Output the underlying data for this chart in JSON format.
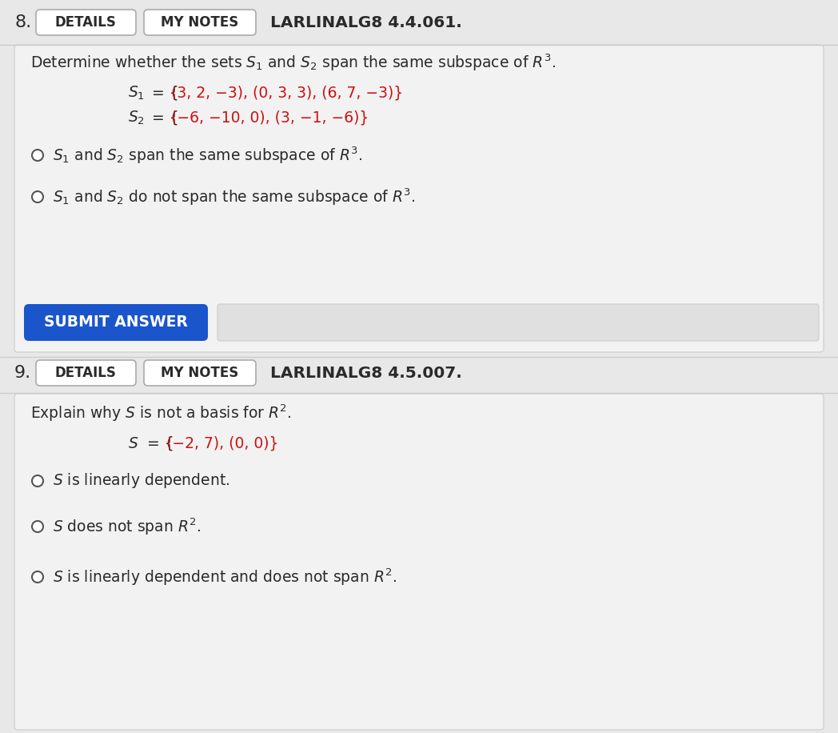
{
  "bg_color": "#e8e8e8",
  "panel_color": "#f0f0f0",
  "content_bg": "#f2f2f2",
  "white": "#ffffff",
  "border_color": "#bbbbbb",
  "text_dark": "#2a2a2a",
  "text_red": "#cc1111",
  "button_bg": "#1a55cc",
  "button_text": "#ffffff",
  "q8_num": "8.",
  "q8_ref": "LARLINALG8 4.4.061.",
  "q9_num": "9.",
  "q9_ref": "LARLINALG8 4.5.007.",
  "btn_label": "SUBMIT ANSWER",
  "details": "DETAILS",
  "mynotes": "MY NOTES"
}
